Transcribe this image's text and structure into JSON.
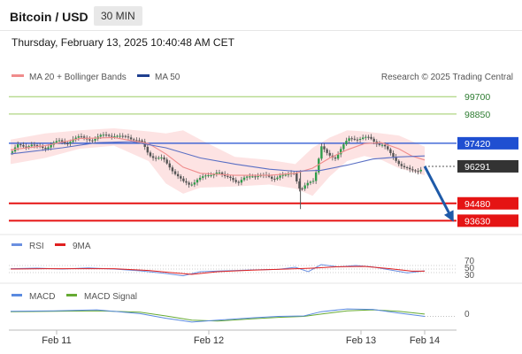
{
  "header": {
    "pair": "Bitcoin / USD",
    "timeframe": "30 MIN",
    "datetime": "Thursday, February 13, 2025 10:40:48 AM CET"
  },
  "legend": {
    "ma20": "MA 20 + Bollinger Bands",
    "ma50": "MA 50",
    "credit": "Research © 2025 Trading Central",
    "rsi": "RSI",
    "rsi_ma": "9MA",
    "macd": "MACD",
    "macd_signal": "MACD Signal"
  },
  "colors": {
    "ma20": "#f08c8c",
    "ma50": "#5a6fc4",
    "band_fill": "#fde0e0",
    "resistance_green": "#9ccc65",
    "pivot_blue": "#1f4fd1",
    "support_red": "#e51414",
    "current_price": "#333333",
    "rsi_line": "#6a8fe0",
    "rsi_ma_line": "#e02020",
    "macd_line": "#5a8ae0",
    "macd_signal_line": "#66aa33",
    "arrow": "#1e5aa8"
  },
  "levels": [
    {
      "label": "99700",
      "value": 99700,
      "kind": "resistance"
    },
    {
      "label": "98850",
      "value": 98850,
      "kind": "resistance"
    },
    {
      "label": "97420",
      "value": 97420,
      "kind": "pivot"
    },
    {
      "label": "96291",
      "value": 96291,
      "kind": "current"
    },
    {
      "label": "94480",
      "value": 94480,
      "kind": "support"
    },
    {
      "label": "93630",
      "value": 93630,
      "kind": "support"
    }
  ],
  "rsi_ticks": [
    "70",
    "50",
    "30"
  ],
  "macd_ticks": [
    "0"
  ],
  "chart_data": {
    "type": "candlestick",
    "x_ticks": [
      "Feb 11",
      "Feb 12",
      "Feb 13",
      "Feb 14"
    ],
    "ylim": [
      93300,
      100100
    ],
    "close_path": [
      [
        0,
        96950
      ],
      [
        8,
        97300
      ],
      [
        16,
        97250
      ],
      [
        24,
        97400
      ],
      [
        32,
        97200
      ],
      [
        40,
        97150
      ],
      [
        48,
        97450
      ],
      [
        56,
        97500
      ],
      [
        64,
        97400
      ],
      [
        72,
        97650
      ],
      [
        80,
        97700
      ],
      [
        88,
        97650
      ],
      [
        96,
        97600
      ],
      [
        104,
        97750
      ],
      [
        112,
        97850
      ],
      [
        120,
        97800
      ],
      [
        128,
        97700
      ],
      [
        136,
        97750
      ],
      [
        144,
        97600
      ],
      [
        152,
        97450
      ],
      [
        160,
        96900
      ],
      [
        168,
        96700
      ],
      [
        176,
        96650
      ],
      [
        184,
        96300
      ],
      [
        192,
        95900
      ],
      [
        200,
        95500
      ],
      [
        208,
        95400
      ],
      [
        216,
        95650
      ],
      [
        224,
        95750
      ],
      [
        232,
        95900
      ],
      [
        240,
        96050
      ],
      [
        248,
        95750
      ],
      [
        256,
        95750
      ],
      [
        264,
        95500
      ],
      [
        272,
        95700
      ],
      [
        280,
        95850
      ],
      [
        288,
        95850
      ],
      [
        296,
        95800
      ],
      [
        304,
        95700
      ],
      [
        312,
        95850
      ],
      [
        320,
        95800
      ],
      [
        328,
        96050
      ],
      [
        336,
        95100
      ],
      [
        344,
        95400
      ],
      [
        352,
        95650
      ],
      [
        360,
        97300
      ],
      [
        368,
        96800
      ],
      [
        376,
        96700
      ],
      [
        384,
        97250
      ],
      [
        392,
        97600
      ],
      [
        400,
        97650
      ],
      [
        408,
        97700
      ],
      [
        416,
        97650
      ],
      [
        424,
        97450
      ],
      [
        432,
        97350
      ],
      [
        440,
        96900
      ],
      [
        448,
        96550
      ],
      [
        456,
        96250
      ],
      [
        464,
        96050
      ],
      [
        472,
        96100
      ],
      [
        480,
        96291
      ]
    ],
    "ma20": [
      [
        0,
        97100
      ],
      [
        40,
        97300
      ],
      [
        80,
        97650
      ],
      [
        120,
        97700
      ],
      [
        160,
        97400
      ],
      [
        180,
        96900
      ],
      [
        200,
        96250
      ],
      [
        220,
        95950
      ],
      [
        260,
        95850
      ],
      [
        300,
        95850
      ],
      [
        330,
        95950
      ],
      [
        350,
        96200
      ],
      [
        370,
        96700
      ],
      [
        390,
        97100
      ],
      [
        410,
        97400
      ],
      [
        430,
        97450
      ],
      [
        450,
        97150
      ],
      [
        465,
        96800
      ],
      [
        480,
        96600
      ]
    ],
    "ma50": [
      [
        0,
        96900
      ],
      [
        60,
        97200
      ],
      [
        100,
        97450
      ],
      [
        140,
        97500
      ],
      [
        180,
        97200
      ],
      [
        220,
        96700
      ],
      [
        260,
        96400
      ],
      [
        300,
        96150
      ],
      [
        330,
        96050
      ],
      [
        360,
        96100
      ],
      [
        390,
        96350
      ],
      [
        420,
        96650
      ],
      [
        450,
        96750
      ],
      [
        480,
        96800
      ]
    ],
    "bollinger_upper": [
      [
        0,
        97600
      ],
      [
        40,
        97900
      ],
      [
        80,
        98050
      ],
      [
        120,
        98150
      ],
      [
        160,
        98000
      ],
      [
        180,
        97900
      ],
      [
        200,
        98050
      ],
      [
        220,
        97600
      ],
      [
        260,
        96750
      ],
      [
        300,
        96600
      ],
      [
        330,
        96400
      ],
      [
        350,
        97200
      ],
      [
        370,
        97700
      ],
      [
        390,
        98050
      ],
      [
        410,
        98000
      ],
      [
        430,
        97900
      ],
      [
        450,
        97800
      ],
      [
        480,
        97250
      ]
    ],
    "bollinger_lower": [
      [
        0,
        96400
      ],
      [
        40,
        96700
      ],
      [
        80,
        97150
      ],
      [
        120,
        97300
      ],
      [
        160,
        96550
      ],
      [
        180,
        95450
      ],
      [
        200,
        94950
      ],
      [
        220,
        95250
      ],
      [
        260,
        95300
      ],
      [
        300,
        95400
      ],
      [
        330,
        95200
      ],
      [
        350,
        94850
      ],
      [
        370,
        95800
      ],
      [
        390,
        96550
      ],
      [
        410,
        96800
      ],
      [
        430,
        96600
      ],
      [
        450,
        96200
      ],
      [
        480,
        95850
      ]
    ],
    "forecast_arrow": {
      "from": 96291,
      "to": 93630
    },
    "rsi": {
      "ylim": [
        0,
        100
      ],
      "rsi": [
        [
          0,
          52
        ],
        [
          30,
          55
        ],
        [
          60,
          50
        ],
        [
          90,
          56
        ],
        [
          120,
          50
        ],
        [
          150,
          40
        ],
        [
          180,
          25
        ],
        [
          200,
          12
        ],
        [
          220,
          35
        ],
        [
          250,
          40
        ],
        [
          280,
          45
        ],
        [
          310,
          48
        ],
        [
          330,
          60
        ],
        [
          345,
          35
        ],
        [
          360,
          75
        ],
        [
          380,
          62
        ],
        [
          400,
          70
        ],
        [
          420,
          62
        ],
        [
          440,
          45
        ],
        [
          460,
          28
        ],
        [
          480,
          40
        ]
      ],
      "rsi_ma": [
        [
          0,
          50
        ],
        [
          40,
          52
        ],
        [
          80,
          52
        ],
        [
          120,
          52
        ],
        [
          160,
          42
        ],
        [
          190,
          28
        ],
        [
          210,
          20
        ],
        [
          240,
          35
        ],
        [
          280,
          44
        ],
        [
          320,
          50
        ],
        [
          350,
          55
        ],
        [
          380,
          63
        ],
        [
          410,
          65
        ],
        [
          440,
          52
        ],
        [
          465,
          38
        ],
        [
          480,
          38
        ]
      ]
    },
    "macd": {
      "macd": [
        [
          0,
          0.55
        ],
        [
          50,
          0.6
        ],
        [
          100,
          0.7
        ],
        [
          150,
          0.3
        ],
        [
          180,
          -0.2
        ],
        [
          210,
          -0.6
        ],
        [
          240,
          -0.4
        ],
        [
          280,
          -0.15
        ],
        [
          310,
          0.0
        ],
        [
          340,
          0.05
        ],
        [
          360,
          0.5
        ],
        [
          390,
          0.8
        ],
        [
          420,
          0.75
        ],
        [
          450,
          0.35
        ],
        [
          480,
          0.0
        ]
      ],
      "signal": [
        [
          0,
          0.5
        ],
        [
          50,
          0.55
        ],
        [
          100,
          0.6
        ],
        [
          150,
          0.45
        ],
        [
          180,
          0.05
        ],
        [
          210,
          -0.4
        ],
        [
          240,
          -0.5
        ],
        [
          280,
          -0.25
        ],
        [
          310,
          -0.1
        ],
        [
          340,
          0.0
        ],
        [
          360,
          0.25
        ],
        [
          390,
          0.6
        ],
        [
          420,
          0.7
        ],
        [
          450,
          0.55
        ],
        [
          480,
          0.25
        ]
      ]
    }
  }
}
